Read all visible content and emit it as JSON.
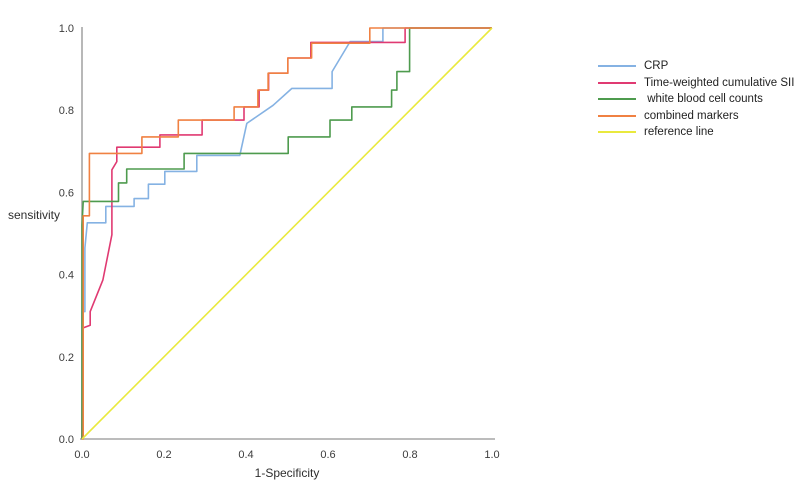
{
  "chart_data": {
    "type": "line",
    "subtype": "roc-step-curves",
    "title": "",
    "xlabel": "1-Specificity",
    "ylabel": "sensitivity",
    "xlim": [
      0.0,
      1.0
    ],
    "ylim": [
      0.0,
      1.0
    ],
    "x_ticks": [
      "0.0",
      "0.2",
      "0.4",
      "0.6",
      "0.8",
      "1.0"
    ],
    "y_ticks": [
      "0.0",
      "0.2",
      "0.4",
      "0.6",
      "0.8",
      "1.0"
    ],
    "grid": "off",
    "legend_position": "right-outside",
    "series": [
      {
        "name": "CRP",
        "color": "#85b2e3",
        "points": [
          [
            0,
            0
          ],
          [
            0,
            0.31
          ],
          [
            0.007,
            0.31
          ],
          [
            0.007,
            0.465
          ],
          [
            0.013,
            0.526
          ],
          [
            0.058,
            0.526
          ],
          [
            0.058,
            0.566
          ],
          [
            0.127,
            0.566
          ],
          [
            0.127,
            0.585
          ],
          [
            0.162,
            0.585
          ],
          [
            0.162,
            0.62
          ],
          [
            0.202,
            0.62
          ],
          [
            0.202,
            0.651
          ],
          [
            0.28,
            0.651
          ],
          [
            0.28,
            0.69
          ],
          [
            0.385,
            0.69
          ],
          [
            0.402,
            0.768
          ],
          [
            0.466,
            0.812
          ],
          [
            0.512,
            0.853
          ],
          [
            0.61,
            0.853
          ],
          [
            0.61,
            0.894
          ],
          [
            0.654,
            0.967
          ],
          [
            0.734,
            0.967
          ],
          [
            0.734,
            1.0
          ],
          [
            1.0,
            1.0
          ]
        ]
      },
      {
        "name": "Time-weighted cumulative SII",
        "color": "#e03a72",
        "points": [
          [
            0,
            0
          ],
          [
            0.002,
            0.27
          ],
          [
            0.02,
            0.277
          ],
          [
            0.02,
            0.31
          ],
          [
            0.051,
            0.387
          ],
          [
            0.073,
            0.497
          ],
          [
            0.073,
            0.655
          ],
          [
            0.085,
            0.675
          ],
          [
            0.085,
            0.71
          ],
          [
            0.19,
            0.71
          ],
          [
            0.19,
            0.74
          ],
          [
            0.293,
            0.74
          ],
          [
            0.293,
            0.776
          ],
          [
            0.395,
            0.776
          ],
          [
            0.395,
            0.808
          ],
          [
            0.432,
            0.808
          ],
          [
            0.432,
            0.849
          ],
          [
            0.455,
            0.849
          ],
          [
            0.455,
            0.89
          ],
          [
            0.502,
            0.89
          ],
          [
            0.502,
            0.927
          ],
          [
            0.558,
            0.927
          ],
          [
            0.558,
            0.965
          ],
          [
            0.788,
            0.965
          ],
          [
            0.788,
            1.0
          ],
          [
            1.0,
            1.0
          ]
        ]
      },
      {
        "name": " white blood cell counts",
        "color": "#4e9b4e",
        "points": [
          [
            0,
            0
          ],
          [
            0,
            0.52
          ],
          [
            0.003,
            0.578
          ],
          [
            0.089,
            0.578
          ],
          [
            0.089,
            0.623
          ],
          [
            0.109,
            0.623
          ],
          [
            0.109,
            0.657
          ],
          [
            0.249,
            0.657
          ],
          [
            0.249,
            0.695
          ],
          [
            0.503,
            0.695
          ],
          [
            0.503,
            0.735
          ],
          [
            0.605,
            0.735
          ],
          [
            0.605,
            0.776
          ],
          [
            0.658,
            0.776
          ],
          [
            0.658,
            0.808
          ],
          [
            0.755,
            0.808
          ],
          [
            0.755,
            0.849
          ],
          [
            0.768,
            0.849
          ],
          [
            0.768,
            0.894
          ],
          [
            0.799,
            0.894
          ],
          [
            0.799,
            1.0
          ],
          [
            1.0,
            1.0
          ]
        ]
      },
      {
        "name": "combined markers",
        "color": "#f08142",
        "points": [
          [
            0,
            0
          ],
          [
            0.003,
            0
          ],
          [
            0.003,
            0.543
          ],
          [
            0.018,
            0.543
          ],
          [
            0.018,
            0.695
          ],
          [
            0.146,
            0.695
          ],
          [
            0.146,
            0.735
          ],
          [
            0.235,
            0.735
          ],
          [
            0.235,
            0.776
          ],
          [
            0.371,
            0.776
          ],
          [
            0.371,
            0.808
          ],
          [
            0.429,
            0.808
          ],
          [
            0.429,
            0.849
          ],
          [
            0.454,
            0.849
          ],
          [
            0.454,
            0.89
          ],
          [
            0.502,
            0.89
          ],
          [
            0.502,
            0.927
          ],
          [
            0.56,
            0.927
          ],
          [
            0.56,
            0.963
          ],
          [
            0.702,
            0.963
          ],
          [
            0.702,
            1.0
          ],
          [
            1.0,
            1.0
          ]
        ]
      },
      {
        "name": "reference line",
        "color": "#e9e93d",
        "points": [
          [
            0,
            0
          ],
          [
            1.0,
            1.0
          ]
        ]
      }
    ]
  }
}
